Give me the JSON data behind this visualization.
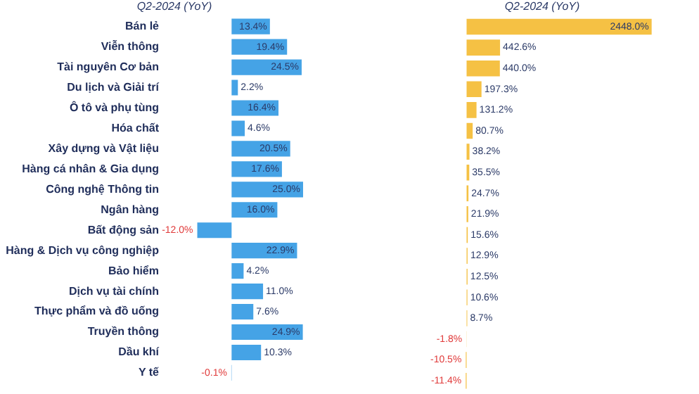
{
  "chart_data": [
    {
      "type": "bar",
      "orientation": "horizontal",
      "title": "Q2-2024 (YoY)",
      "tick_labels": "y",
      "categories": [
        "Bán lẻ",
        "Viễn thông",
        "Tài nguyên Cơ bản",
        "Du lịch và Giải trí",
        "Ô tô và phụ tùng",
        "Hóa chất",
        "Xây dựng và Vật liệu",
        "Hàng cá nhân & Gia dụng",
        "Công nghệ Thông tin",
        "Ngân hàng",
        "Bất động sản",
        "Hàng & Dịch vụ công nghiệp",
        "Bảo hiểm",
        "Dịch vụ tài chính",
        "Thực phẩm và đồ uống",
        "Truyền thông",
        "Dầu khí",
        "Y tế"
      ],
      "series": [
        {
          "color": "#45a3e6",
          "values": [
            13.4,
            19.4,
            24.5,
            2.2,
            16.4,
            4.6,
            20.5,
            17.6,
            25.0,
            16.0,
            -12.0,
            22.9,
            4.2,
            11.0,
            7.6,
            24.9,
            10.3,
            -0.1
          ],
          "value_labels": [
            "13.4%",
            "19.4%",
            "24.5%",
            "2.2%",
            "16.4%",
            "4.6%",
            "20.5%",
            "17.6%",
            "25.0%",
            "16.0%",
            "-12.0%",
            "22.9%",
            "4.2%",
            "11.0%",
            "7.6%",
            "24.9%",
            "10.3%",
            "-0.1%"
          ]
        }
      ]
    },
    {
      "type": "bar",
      "orientation": "horizontal",
      "title": "Q2-2024 (YoY)",
      "tick_labels": false,
      "categories": [
        null,
        null,
        null,
        null,
        null,
        null,
        null,
        null,
        null,
        null,
        null,
        null,
        null,
        null,
        null,
        null,
        null,
        null
      ],
      "series": [
        {
          "color": "#f5c144",
          "values": [
            2448.0,
            442.6,
            440.0,
            197.3,
            131.2,
            80.7,
            38.2,
            35.5,
            24.7,
            21.9,
            15.6,
            12.9,
            12.5,
            10.6,
            8.7,
            -1.8,
            -10.5,
            -11.4
          ],
          "value_labels": [
            "2448.0%",
            "442.6%",
            "440.0%",
            "197.3%",
            "131.2%",
            "80.7%",
            "38.2%",
            "35.5%",
            "24.7%",
            "21.9%",
            "15.6%",
            "12.9%",
            "12.5%",
            "10.6%",
            "8.7%",
            "-1.8%",
            "-10.5%",
            "-11.4%"
          ]
        }
      ]
    }
  ]
}
